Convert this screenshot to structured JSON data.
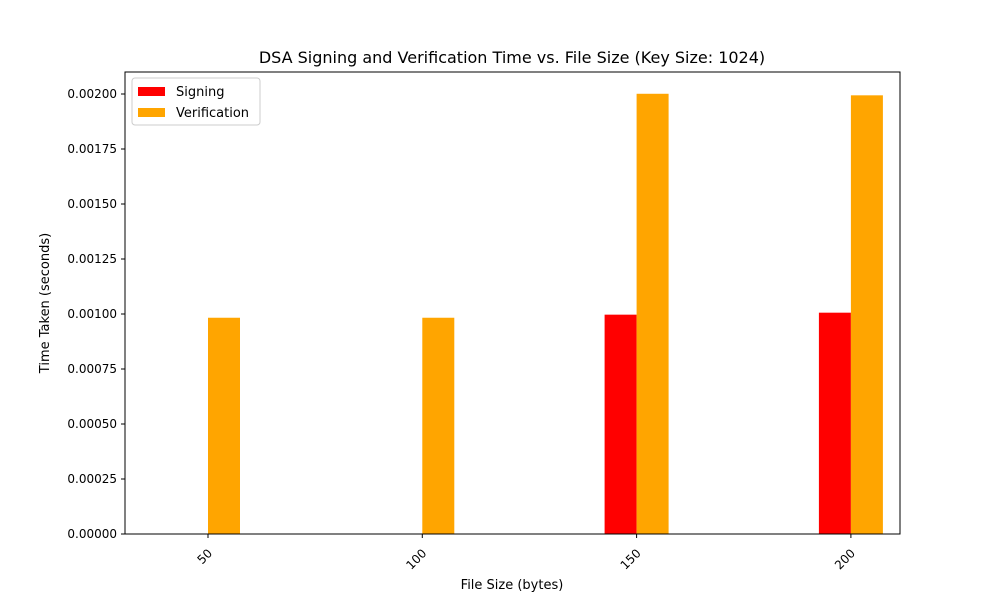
{
  "chart_data": {
    "type": "bar",
    "title": "DSA Signing and Verification Time vs. File Size (Key Size: 1024)",
    "xlabel": "File Size (bytes)",
    "ylabel": "Time Taken (seconds)",
    "categories": [
      "50",
      "100",
      "150",
      "200"
    ],
    "series": [
      {
        "name": "Signing",
        "color": "#ff0000",
        "values": [
          0,
          0,
          0.000997,
          0.001006
        ]
      },
      {
        "name": "Verification",
        "color": "#ffa500",
        "values": [
          0.000983,
          0.000983,
          0.002001,
          0.001994
        ]
      }
    ],
    "ylim": [
      0,
      0.0021
    ],
    "yticks": [
      0,
      0.00025,
      0.0005,
      0.00075,
      0.001,
      0.00125,
      0.0015,
      0.00175,
      0.002
    ],
    "ytick_labels": [
      "0.00000",
      "0.00025",
      "0.00050",
      "0.00075",
      "0.00100",
      "0.00125",
      "0.00150",
      "0.00175",
      "0.00200"
    ],
    "grid": false,
    "legend_position": "top-left"
  }
}
